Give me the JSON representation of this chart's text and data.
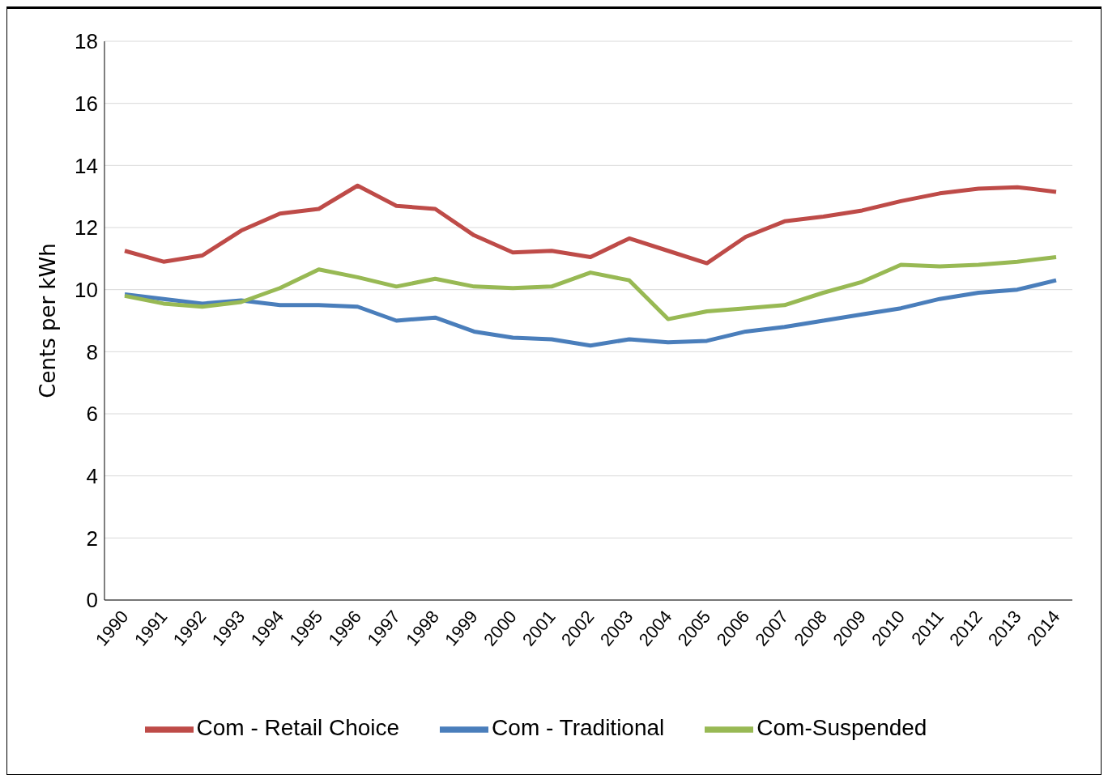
{
  "chart_data": {
    "type": "line",
    "ylabel": "Cents per kWh",
    "categories": [
      "1990",
      "1991",
      "1992",
      "1993",
      "1994",
      "1995",
      "1996",
      "1997",
      "1998",
      "1999",
      "2000",
      "2001",
      "2002",
      "2003",
      "2004",
      "2005",
      "2006",
      "2007",
      "2008",
      "2009",
      "2010",
      "2011",
      "2012",
      "2013",
      "2014"
    ],
    "series": [
      {
        "name": "Com - Traditional",
        "color": "#4a7ebb",
        "values": [
          9.85,
          9.7,
          9.55,
          9.65,
          9.5,
          9.5,
          9.45,
          9.0,
          9.1,
          8.65,
          8.45,
          8.4,
          8.2,
          8.4,
          8.3,
          8.35,
          8.65,
          8.8,
          9.0,
          9.2,
          9.4,
          9.7,
          9.9,
          10.0,
          10.3
        ]
      },
      {
        "name": "Com - Retail Choice",
        "color": "#be4b48",
        "values": [
          11.25,
          10.9,
          11.1,
          11.9,
          12.45,
          12.6,
          13.35,
          12.7,
          12.6,
          11.75,
          11.2,
          11.25,
          11.05,
          11.65,
          11.25,
          10.85,
          11.7,
          12.2,
          12.35,
          12.55,
          12.85,
          13.1,
          13.25,
          13.3,
          13.15
        ]
      },
      {
        "name": "Com-Suspended",
        "color": "#98b954",
        "values": [
          9.8,
          9.55,
          9.45,
          9.6,
          10.05,
          10.65,
          10.4,
          10.1,
          10.35,
          10.1,
          10.05,
          10.1,
          10.55,
          10.3,
          9.05,
          9.3,
          9.4,
          9.5,
          9.9,
          10.25,
          10.8,
          10.75,
          10.8,
          10.9,
          11.05
        ]
      }
    ],
    "ylim": [
      0,
      18
    ],
    "yticks": [
      0,
      2,
      4,
      6,
      8,
      10,
      12,
      14,
      16,
      18
    ],
    "grid": "y",
    "legend": "bottom",
    "marker": "none",
    "line_style": "solid"
  }
}
